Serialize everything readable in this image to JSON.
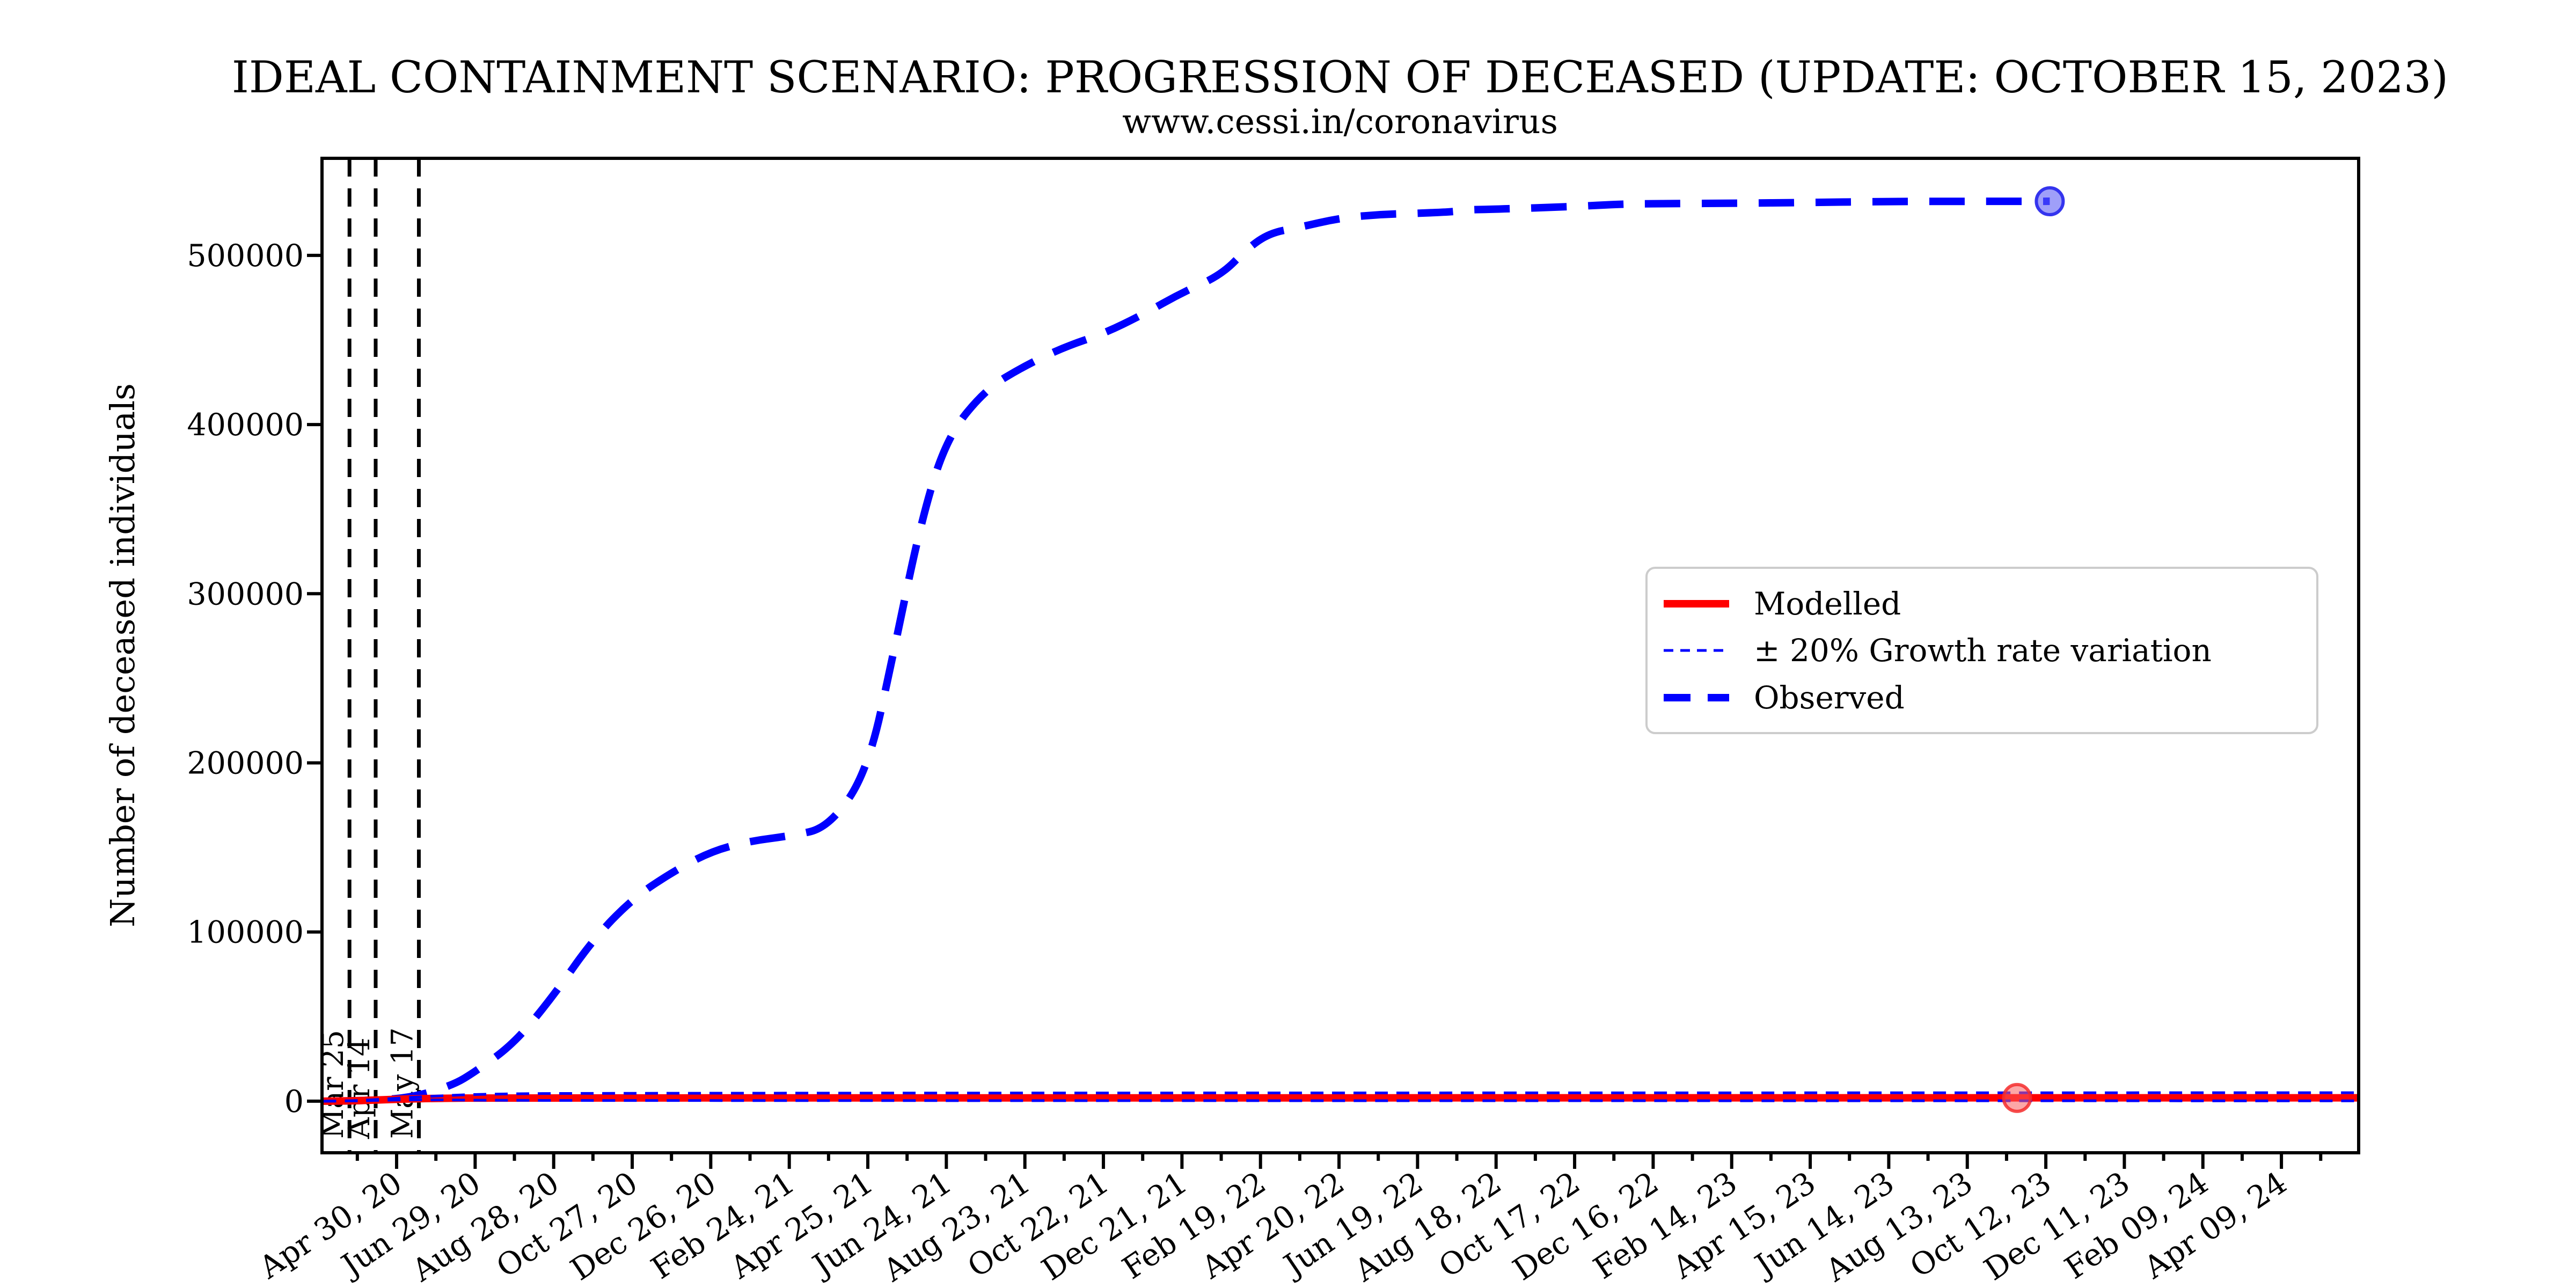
{
  "header": {
    "title": "IDEAL CONTAINMENT SCENARIO: PROGRESSION OF DECEASED (UPDATE: OCTOBER 15, 2023)",
    "subtitle": "www.cessi.in/coronavirus"
  },
  "chart_data": {
    "type": "line",
    "title": "IDEAL CONTAINMENT SCENARIO: PROGRESSION OF DECEASED (UPDATE: OCTOBER 15, 2023)",
    "subtitle": "www.cessi.in/coronavirus",
    "xlabel": "",
    "ylabel": "Number of deceased individuals",
    "grid": false,
    "colors": {
      "observed": "#0000ff",
      "modelled": "#ff0000",
      "band": "#0000ff",
      "vline": "#000000",
      "legend_border": "#cccccc"
    },
    "ylim": [
      -30500,
      557400
    ],
    "x_axis": {
      "start_date": "2020-03-04",
      "end_date": "2024-06-07",
      "major_interval_days": 60,
      "minor_interval_days": 30
    },
    "yticks": [
      {
        "value": 0,
        "label": "0"
      },
      {
        "value": 100000,
        "label": "100000"
      },
      {
        "value": 200000,
        "label": "200000"
      },
      {
        "value": 300000,
        "label": "300000"
      },
      {
        "value": 400000,
        "label": "400000"
      },
      {
        "value": 500000,
        "label": "500000"
      }
    ],
    "xticks": [
      {
        "date": "2020-04-30",
        "label": "Apr 30, 20"
      },
      {
        "date": "2020-06-29",
        "label": "Jun 29, 20"
      },
      {
        "date": "2020-08-28",
        "label": "Aug 28, 20"
      },
      {
        "date": "2020-10-27",
        "label": "Oct 27, 20"
      },
      {
        "date": "2020-12-26",
        "label": "Dec 26, 20"
      },
      {
        "date": "2021-02-24",
        "label": "Feb 24, 21"
      },
      {
        "date": "2021-04-25",
        "label": "Apr 25, 21"
      },
      {
        "date": "2021-06-24",
        "label": "Jun 24, 21"
      },
      {
        "date": "2021-08-23",
        "label": "Aug 23, 21"
      },
      {
        "date": "2021-10-22",
        "label": "Oct 22, 21"
      },
      {
        "date": "2021-12-21",
        "label": "Dec 21, 21"
      },
      {
        "date": "2022-02-19",
        "label": "Feb 19, 22"
      },
      {
        "date": "2022-04-20",
        "label": "Apr 20, 22"
      },
      {
        "date": "2022-06-19",
        "label": "Jun 19, 22"
      },
      {
        "date": "2022-08-18",
        "label": "Aug 18, 22"
      },
      {
        "date": "2022-10-17",
        "label": "Oct 17, 22"
      },
      {
        "date": "2022-12-16",
        "label": "Dec 16, 22"
      },
      {
        "date": "2023-02-14",
        "label": "Feb 14, 23"
      },
      {
        "date": "2023-04-15",
        "label": "Apr 15, 23"
      },
      {
        "date": "2023-06-14",
        "label": "Jun 14, 23"
      },
      {
        "date": "2023-08-13",
        "label": "Aug 13, 23"
      },
      {
        "date": "2023-10-12",
        "label": "Oct 12, 23"
      },
      {
        "date": "2023-12-11",
        "label": "Dec 11, 23"
      },
      {
        "date": "2024-02-09",
        "label": "Feb 09, 24"
      },
      {
        "date": "2024-04-09",
        "label": "Apr 09, 24"
      }
    ],
    "vlines": [
      {
        "date": "2020-03-25",
        "label": "Mar 25"
      },
      {
        "date": "2020-04-14",
        "label": "Apr 14"
      },
      {
        "date": "2020-05-17",
        "label": "May 17"
      }
    ],
    "legend": {
      "position": "center-right",
      "entries": [
        {
          "label": "Modelled",
          "color": "#ff0000",
          "style": "solid-thick"
        },
        {
          "label": "± 20% Growth rate variation",
          "color": "#0000ff",
          "style": "dashed-thin"
        },
        {
          "label": "Observed",
          "color": "#0000ff",
          "style": "dashed-thick"
        }
      ]
    },
    "series": [
      {
        "name": "Observed",
        "color": "#0000ff",
        "lw": 14,
        "dash": "66,40",
        "points": [
          [
            "2020-03-14",
            0
          ],
          [
            "2020-04-13",
            400
          ],
          [
            "2020-05-13",
            2400
          ],
          [
            "2020-06-12",
            9500
          ],
          [
            "2020-06-29",
            17400
          ],
          [
            "2020-07-29",
            34200
          ],
          [
            "2020-08-28",
            62500
          ],
          [
            "2020-09-27",
            95500
          ],
          [
            "2020-10-27",
            119500
          ],
          [
            "2020-11-26",
            135200
          ],
          [
            "2020-12-26",
            147600
          ],
          [
            "2021-01-25",
            153800
          ],
          [
            "2021-02-24",
            156700
          ],
          [
            "2021-03-26",
            161600
          ],
          [
            "2021-04-25",
            195100
          ],
          [
            "2021-05-15",
            266200
          ],
          [
            "2021-06-04",
            340700
          ],
          [
            "2021-06-24",
            392000
          ],
          [
            "2021-07-24",
            420900
          ],
          [
            "2021-08-23",
            434800
          ],
          [
            "2021-09-22",
            445800
          ],
          [
            "2021-10-22",
            453700
          ],
          [
            "2021-11-21",
            465000
          ],
          [
            "2021-12-21",
            478000
          ],
          [
            "2022-01-20",
            488400
          ],
          [
            "2022-02-09",
            504100
          ],
          [
            "2022-02-26",
            513200
          ],
          [
            "2022-03-20",
            516500
          ],
          [
            "2022-04-20",
            522000
          ],
          [
            "2022-05-20",
            524200
          ],
          [
            "2022-06-19",
            524900
          ],
          [
            "2022-07-17",
            525800
          ],
          [
            "2022-07-26",
            527000
          ],
          [
            "2022-08-18",
            527300
          ],
          [
            "2022-10-17",
            528900
          ],
          [
            "2022-11-20",
            530300
          ],
          [
            "2022-12-16",
            530600
          ],
          [
            "2023-02-14",
            530800
          ],
          [
            "2023-04-15",
            531300
          ],
          [
            "2023-06-14",
            531900
          ],
          [
            "2023-08-13",
            531950
          ],
          [
            "2023-10-15",
            532000
          ]
        ]
      },
      {
        "name": "Modelled",
        "color": "#ff0000",
        "lw": 14,
        "dash": null,
        "points": [
          [
            "2020-03-05",
            0
          ],
          [
            "2020-03-25",
            120
          ],
          [
            "2020-04-14",
            650
          ],
          [
            "2020-05-07",
            1300
          ],
          [
            "2020-06-06",
            1750
          ],
          [
            "2020-07-06",
            1900
          ],
          [
            "2021-06-01",
            1950
          ],
          [
            "2024-06-07",
            2000
          ]
        ]
      },
      {
        "name": "Growth rate +20%",
        "color": "#0000ff",
        "lw": 5,
        "dash": "24,16",
        "points": [
          [
            "2020-03-05",
            0
          ],
          [
            "2020-03-25",
            160
          ],
          [
            "2020-04-14",
            900
          ],
          [
            "2020-05-07",
            2100
          ],
          [
            "2020-06-06",
            3300
          ],
          [
            "2020-07-06",
            4200
          ],
          [
            "2020-10-04",
            4800
          ],
          [
            "2024-06-07",
            5000
          ]
        ]
      },
      {
        "name": "Growth rate -20%",
        "color": "#0000ff",
        "lw": 5,
        "dash": "24,16",
        "points": [
          [
            "2020-03-05",
            0
          ],
          [
            "2020-03-25",
            90
          ],
          [
            "2020-04-14",
            450
          ],
          [
            "2020-05-07",
            800
          ],
          [
            "2020-06-06",
            750
          ],
          [
            "2020-07-06",
            550
          ],
          [
            "2020-10-04",
            350
          ],
          [
            "2024-06-07",
            200
          ]
        ]
      }
    ],
    "markers": [
      {
        "name": "observed-endpoint",
        "date": "2023-10-15",
        "value": 532000,
        "r": 25,
        "fill": "rgba(95,95,245,0.6)",
        "stroke": "#3434ee"
      },
      {
        "name": "modelled-endpoint",
        "date": "2023-09-20",
        "value": 1900,
        "r": 25,
        "fill": "rgba(250,95,95,0.55)",
        "stroke": "rgba(245,45,45,0.85)"
      }
    ]
  }
}
